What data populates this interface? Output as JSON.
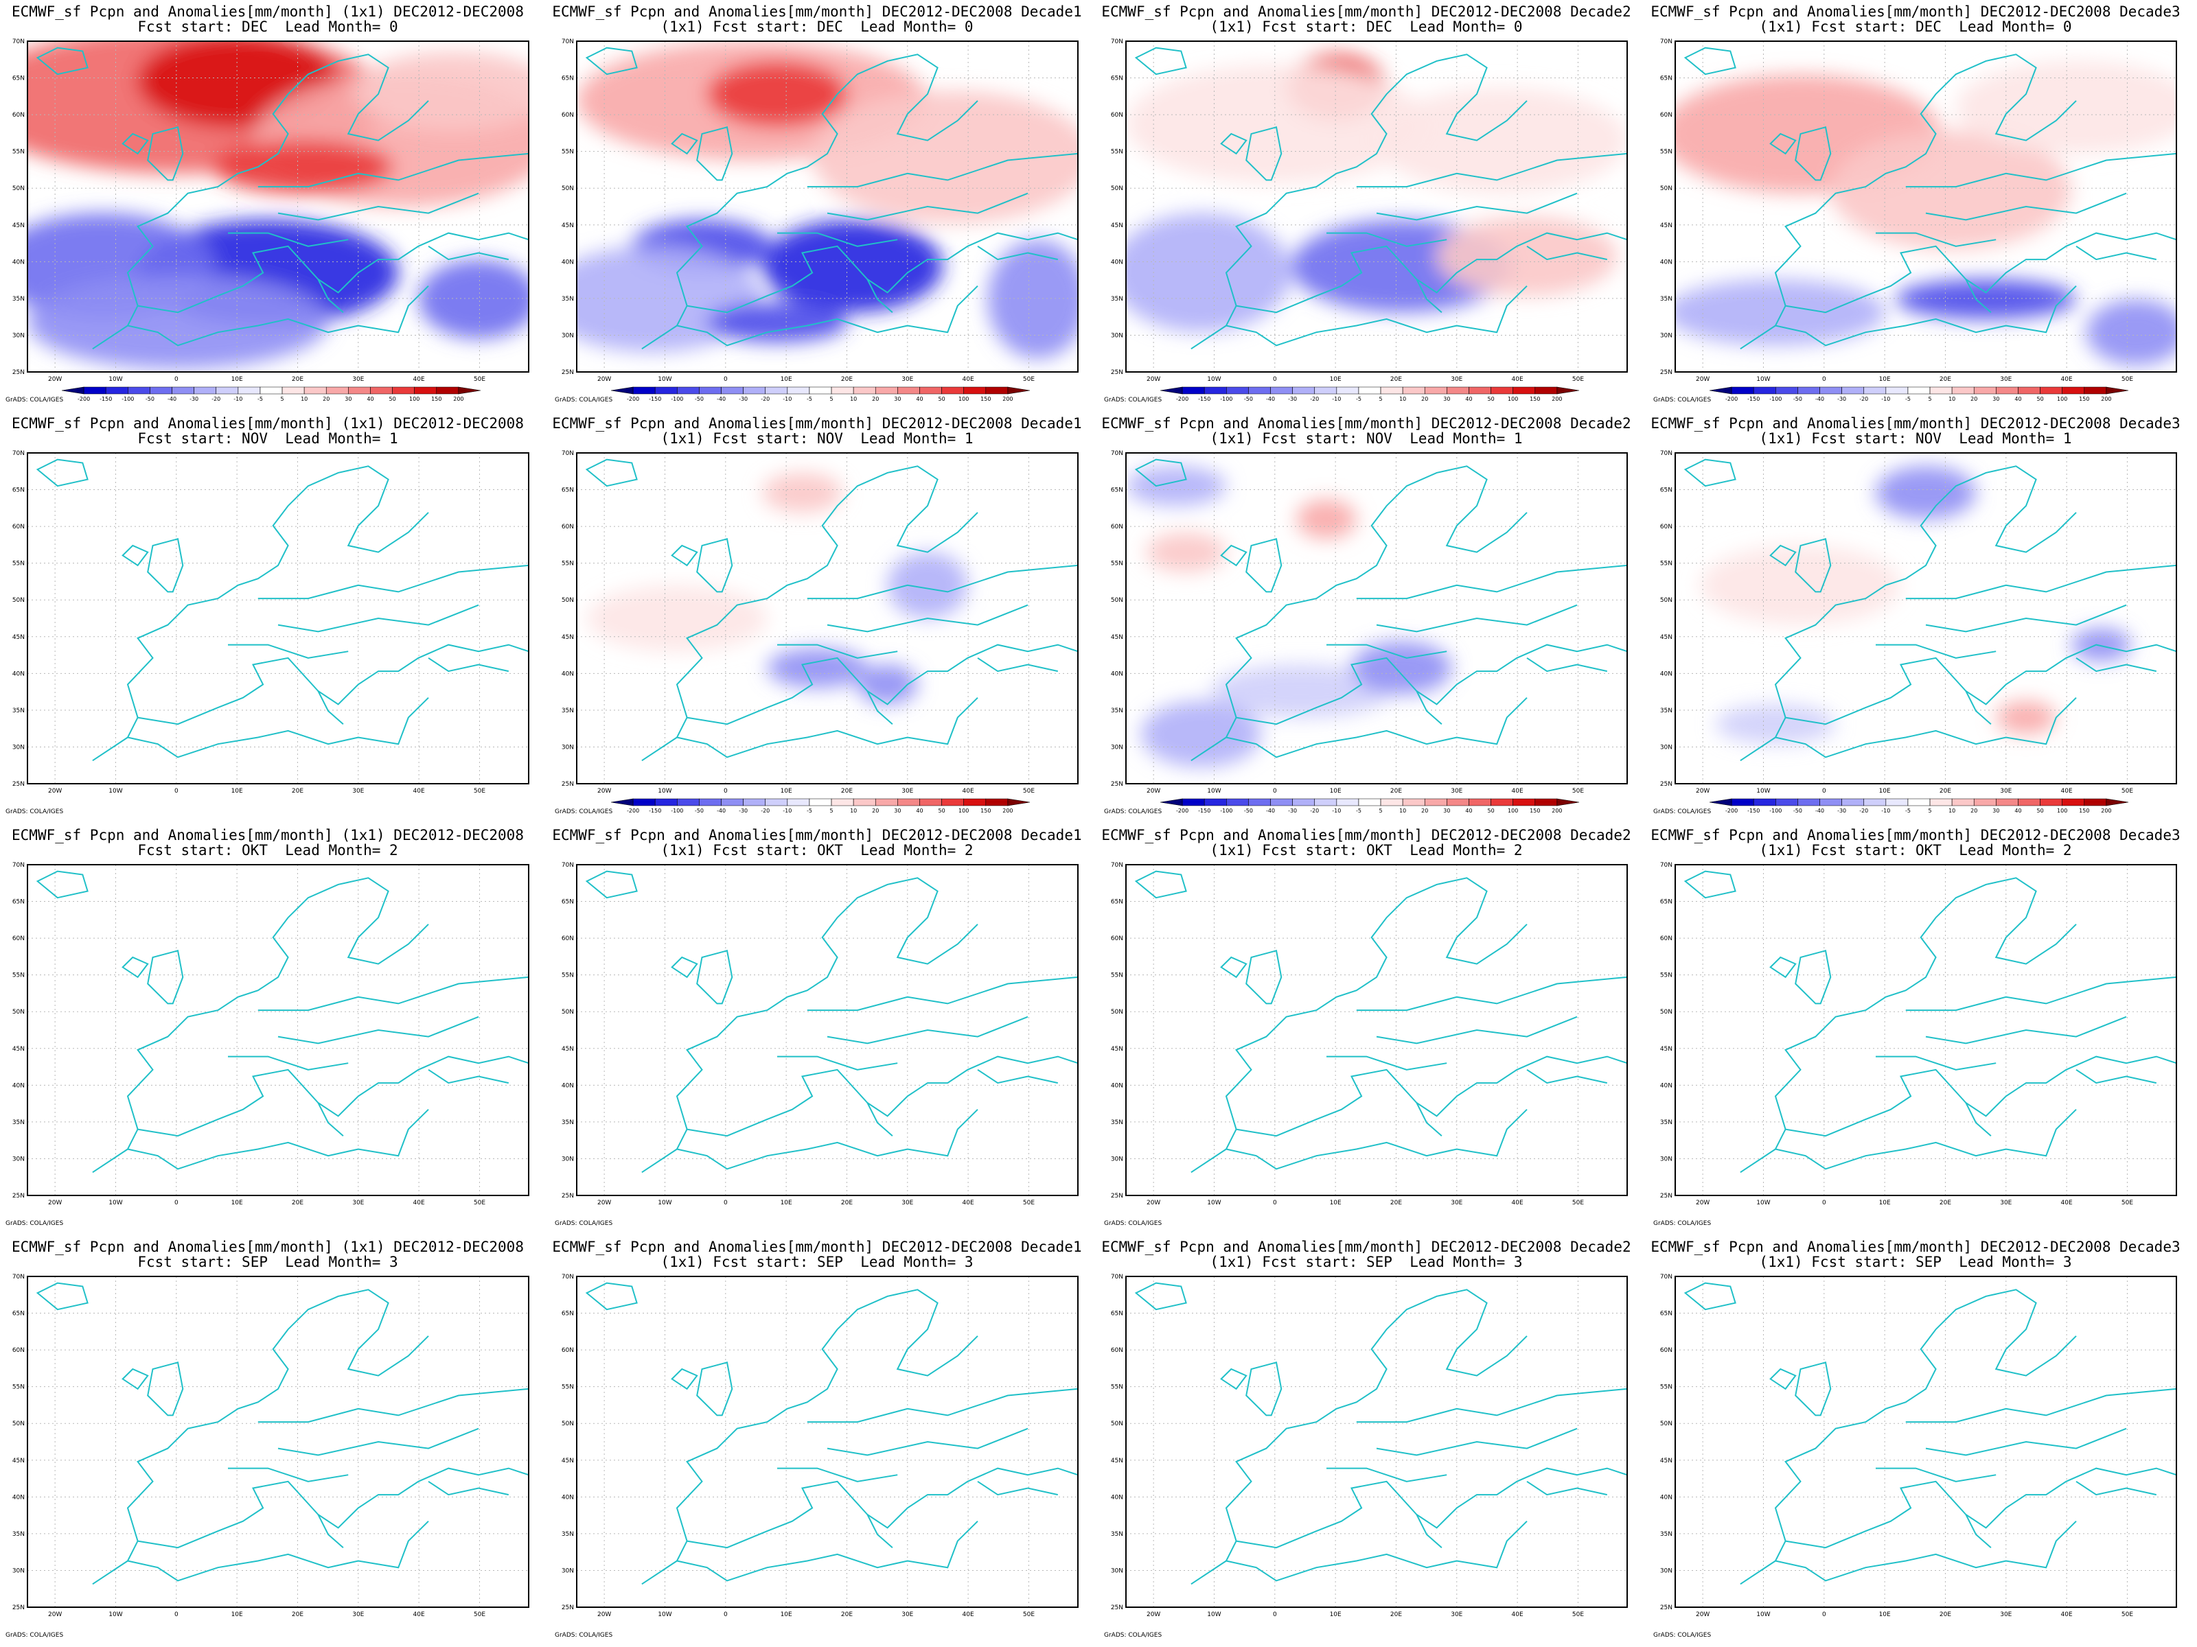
{
  "map": {
    "lat_labels": [
      "70N",
      "65N",
      "60N",
      "55N",
      "50N",
      "45N",
      "40N",
      "35N",
      "30N",
      "25N"
    ],
    "lon_labels": [
      "20W",
      "10W",
      "0",
      "10E",
      "20E",
      "30E",
      "40E",
      "50E"
    ],
    "colorbar_labels": [
      "-200",
      "-150",
      "-100",
      "-50",
      "-40",
      "-30",
      "-20",
      "-10",
      "-5",
      "5",
      "10",
      "20",
      "30",
      "40",
      "50",
      "100",
      "150",
      "200"
    ],
    "colorbar_colors": [
      "#00007a",
      "#0000c8",
      "#2626e0",
      "#4b4bea",
      "#6e6ef0",
      "#8f8ff4",
      "#b0b0f8",
      "#cfcffb",
      "#e8e8fd",
      "#ffffff",
      "#fde6e6",
      "#fbc8c8",
      "#f8a8a8",
      "#f48888",
      "#f06666",
      "#ea3a3a",
      "#d81010",
      "#b00000",
      "#7a0000"
    ],
    "credit": "GrADS: COLA/IGES",
    "coast_color": "#20c0c8"
  },
  "panels": [
    {
      "title1": "ECMWF_sf Pcpn and Anomalies[mm/month] (1x1) DEC2012-DEC2008",
      "title2": "Fcst start: DEC  Lead Month= 0",
      "colorbar": true,
      "shading": "dec0"
    },
    {
      "title1": "ECMWF_sf Pcpn and Anomalies[mm/month] DEC2012-DEC2008 Decade1",
      "title2": "(1x1) Fcst start: DEC  Lead Month= 0",
      "colorbar": true,
      "shading": "dec1"
    },
    {
      "title1": "ECMWF_sf Pcpn and Anomalies[mm/month] DEC2012-DEC2008 Decade2",
      "title2": "(1x1) Fcst start: DEC  Lead Month= 0",
      "colorbar": true,
      "shading": "dec2"
    },
    {
      "title1": "ECMWF_sf Pcpn and Anomalies[mm/month] DEC2012-DEC2008 Decade3",
      "title2": "(1x1) Fcst start: DEC  Lead Month= 0",
      "colorbar": true,
      "shading": "dec3"
    },
    {
      "title1": "ECMWF_sf Pcpn and Anomalies[mm/month] (1x1) DEC2012-DEC2008",
      "title2": "Fcst start: NOV  Lead Month= 1",
      "colorbar": false,
      "shading": "none"
    },
    {
      "title1": "ECMWF_sf Pcpn and Anomalies[mm/month] DEC2012-DEC2008 Decade1",
      "title2": "(1x1) Fcst start: NOV  Lead Month= 1",
      "colorbar": true,
      "shading": "nov1"
    },
    {
      "title1": "ECMWF_sf Pcpn and Anomalies[mm/month] DEC2012-DEC2008 Decade2",
      "title2": "(1x1) Fcst start: NOV  Lead Month= 1",
      "colorbar": true,
      "shading": "nov2"
    },
    {
      "title1": "ECMWF_sf Pcpn and Anomalies[mm/month] DEC2012-DEC2008 Decade3",
      "title2": "(1x1) Fcst start: NOV  Lead Month= 1",
      "colorbar": true,
      "shading": "nov3"
    },
    {
      "title1": "ECMWF_sf Pcpn and Anomalies[mm/month] (1x1) DEC2012-DEC2008",
      "title2": "Fcst start: OKT  Lead Month= 2",
      "colorbar": false,
      "shading": "none"
    },
    {
      "title1": "ECMWF_sf Pcpn and Anomalies[mm/month] DEC2012-DEC2008 Decade1",
      "title2": "(1x1) Fcst start: OKT  Lead Month= 2",
      "colorbar": false,
      "shading": "none"
    },
    {
      "title1": "ECMWF_sf Pcpn and Anomalies[mm/month] DEC2012-DEC2008 Decade2",
      "title2": "(1x1) Fcst start: OKT  Lead Month= 2",
      "colorbar": false,
      "shading": "none"
    },
    {
      "title1": "ECMWF_sf Pcpn and Anomalies[mm/month] DEC2012-DEC2008 Decade3",
      "title2": "(1x1) Fcst start: OKT  Lead Month= 2",
      "colorbar": false,
      "shading": "none"
    },
    {
      "title1": "ECMWF_sf Pcpn and Anomalies[mm/month] (1x1) DEC2012-DEC2008",
      "title2": "Fcst start: SEP  Lead Month= 3",
      "colorbar": false,
      "shading": "none"
    },
    {
      "title1": "ECMWF_sf Pcpn and Anomalies[mm/month] DEC2012-DEC2008 Decade1",
      "title2": "(1x1) Fcst start: SEP  Lead Month= 3",
      "colorbar": false,
      "shading": "none"
    },
    {
      "title1": "ECMWF_sf Pcpn and Anomalies[mm/month] DEC2012-DEC2008 Decade2",
      "title2": "(1x1) Fcst start: SEP  Lead Month= 3",
      "colorbar": false,
      "shading": "none"
    },
    {
      "title1": "ECMWF_sf Pcpn and Anomalies[mm/month] DEC2012-DEC2008 Decade3",
      "title2": "(1x1) Fcst start: SEP  Lead Month= 3",
      "colorbar": false,
      "shading": "none"
    }
  ]
}
